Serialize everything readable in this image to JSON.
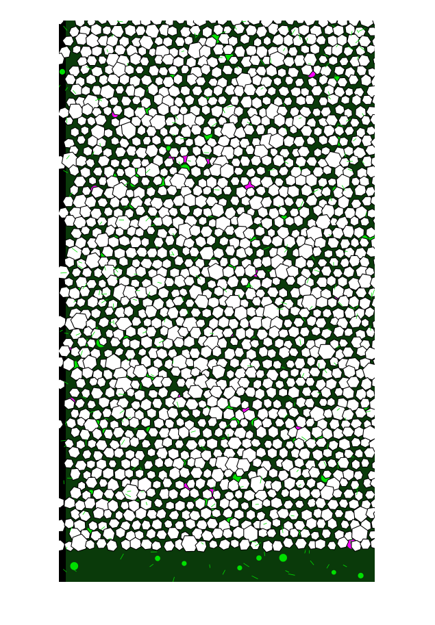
{
  "image": {
    "kind": "segmented-foam-micrograph",
    "colors": {
      "background": "#ffffff",
      "cell_fill": "#ffffff",
      "cell_border": "#000000",
      "segmentation_overlay": "#00e000",
      "highlight": "#ff00ff",
      "void": "#000000"
    },
    "text": []
  }
}
